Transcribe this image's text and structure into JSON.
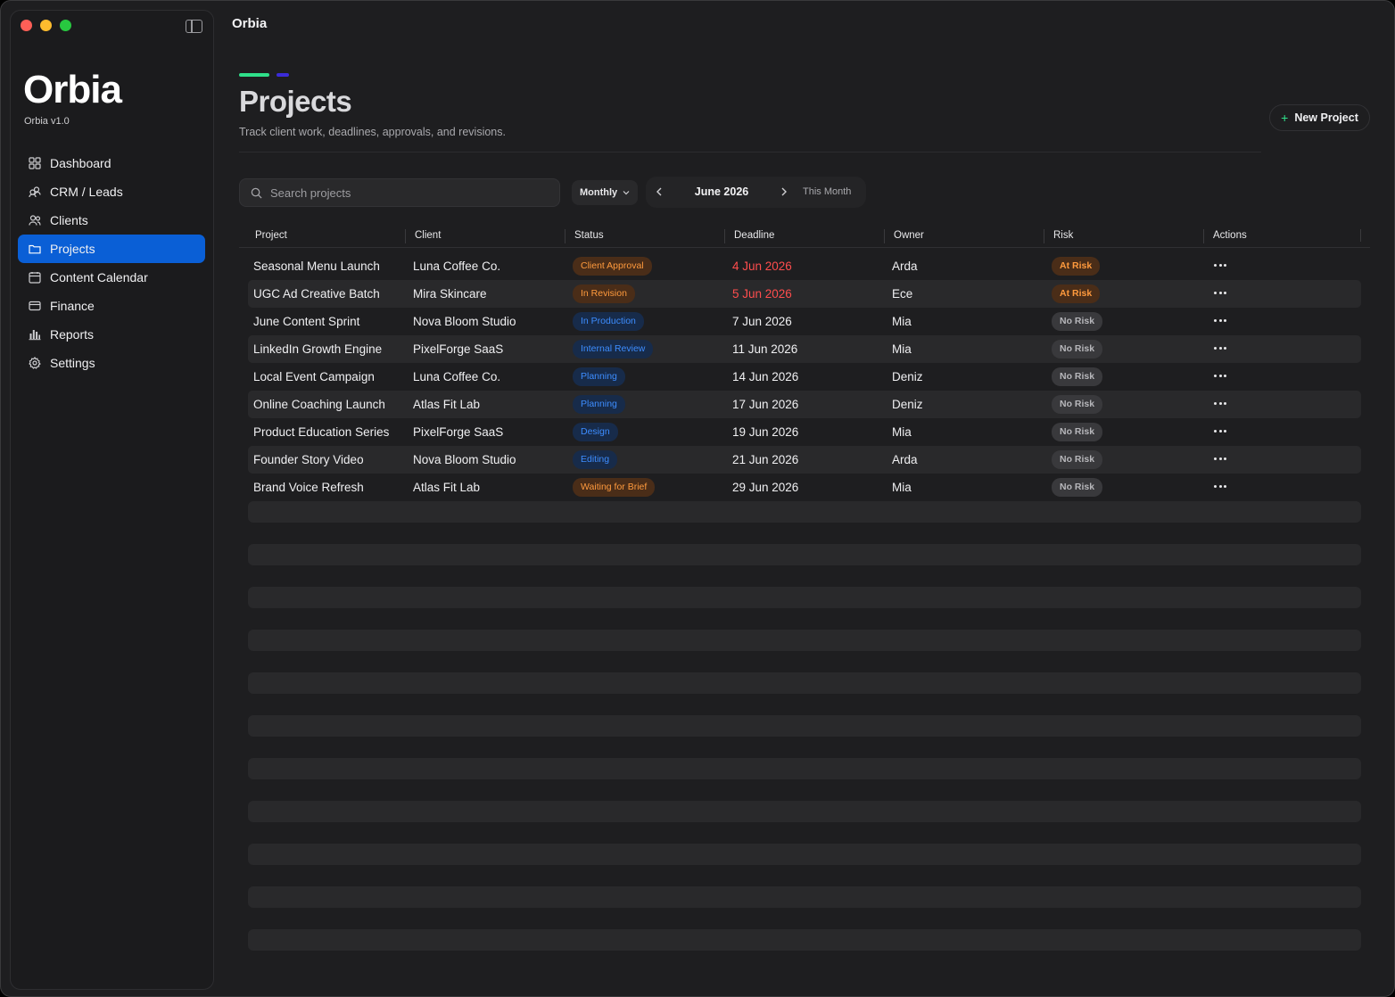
{
  "window": {
    "app_title": "Orbia"
  },
  "sidebar": {
    "logo": "Orbia",
    "version": "Orbia v1.0",
    "items": [
      {
        "label": "Dashboard",
        "icon": "grid-icon"
      },
      {
        "label": "CRM / Leads",
        "icon": "people-group-icon"
      },
      {
        "label": "Clients",
        "icon": "users-icon"
      },
      {
        "label": "Projects",
        "icon": "folder-icon",
        "active": true
      },
      {
        "label": "Content Calendar",
        "icon": "calendar-icon"
      },
      {
        "label": "Finance",
        "icon": "credit-card-icon"
      },
      {
        "label": "Reports",
        "icon": "bar-chart-icon"
      },
      {
        "label": "Settings",
        "icon": "gear-icon"
      }
    ]
  },
  "header": {
    "title": "Projects",
    "subtitle": "Track client work, deadlines, approvals, and revisions.",
    "new_project_label": "New Project",
    "accent_colors": {
      "primary": "#2fe08a",
      "secondary": "#3b2bd8"
    }
  },
  "toolbar": {
    "search_placeholder": "Search projects",
    "period": "Monthly",
    "month": "June 2026",
    "this_month_label": "This Month"
  },
  "table": {
    "columns": [
      "Project",
      "Client",
      "Status",
      "Deadline",
      "Owner",
      "Risk",
      "Actions"
    ],
    "rows": [
      {
        "project": "Seasonal Menu Launch",
        "client": "Luna Coffee Co.",
        "status": "Client Approval",
        "status_color": "orange",
        "deadline": "4 Jun 2026",
        "overdue": true,
        "owner": "Arda",
        "risk": "At Risk"
      },
      {
        "project": "UGC Ad Creative Batch",
        "client": "Mira Skincare",
        "status": "In Revision",
        "status_color": "orange",
        "deadline": "5 Jun 2026",
        "overdue": true,
        "owner": "Ece",
        "risk": "At Risk"
      },
      {
        "project": "June Content Sprint",
        "client": "Nova Bloom Studio",
        "status": "In Production",
        "status_color": "blue",
        "deadline": "7 Jun 2026",
        "overdue": false,
        "owner": "Mia",
        "risk": "No Risk"
      },
      {
        "project": "LinkedIn Growth Engine",
        "client": "PixelForge SaaS",
        "status": "Internal Review",
        "status_color": "blue",
        "deadline": "11 Jun 2026",
        "overdue": false,
        "owner": "Mia",
        "risk": "No Risk"
      },
      {
        "project": "Local Event Campaign",
        "client": "Luna Coffee Co.",
        "status": "Planning",
        "status_color": "blue",
        "deadline": "14 Jun 2026",
        "overdue": false,
        "owner": "Deniz",
        "risk": "No Risk"
      },
      {
        "project": "Online Coaching Launch",
        "client": "Atlas Fit Lab",
        "status": "Planning",
        "status_color": "blue",
        "deadline": "17 Jun 2026",
        "overdue": false,
        "owner": "Deniz",
        "risk": "No Risk"
      },
      {
        "project": "Product Education Series",
        "client": "PixelForge SaaS",
        "status": "Design",
        "status_color": "blue",
        "deadline": "19 Jun 2026",
        "overdue": false,
        "owner": "Mia",
        "risk": "No Risk"
      },
      {
        "project": "Founder Story Video",
        "client": "Nova Bloom Studio",
        "status": "Editing",
        "status_color": "blue",
        "deadline": "21 Jun 2026",
        "overdue": false,
        "owner": "Arda",
        "risk": "No Risk"
      },
      {
        "project": "Brand Voice Refresh",
        "client": "Atlas Fit Lab",
        "status": "Waiting for Brief",
        "status_color": "orange",
        "deadline": "29 Jun 2026",
        "overdue": false,
        "owner": "Mia",
        "risk": "No Risk"
      }
    ]
  },
  "colors": {
    "active_nav": "#0a5fd6",
    "overdue": "#ff4d4d",
    "status_orange": "#ff9a3d",
    "status_blue": "#3d8dff"
  }
}
